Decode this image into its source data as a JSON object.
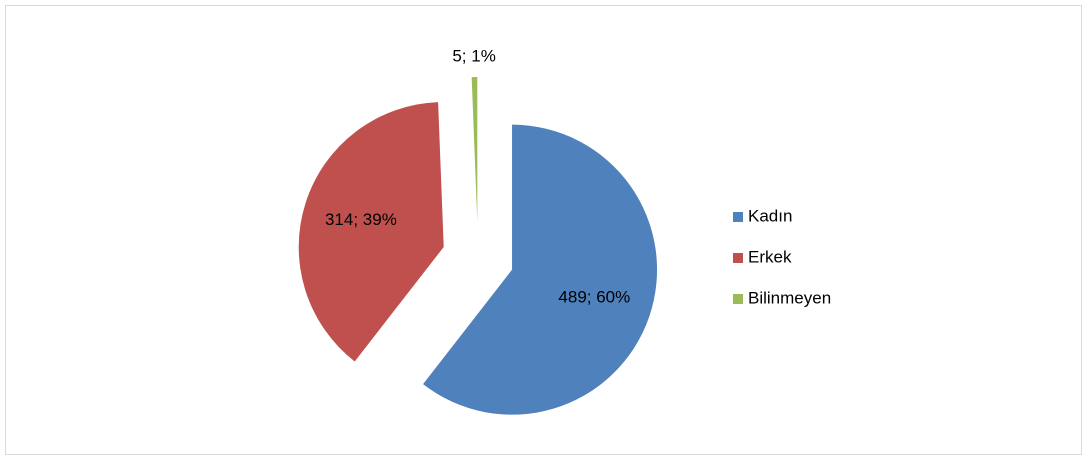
{
  "chart_data": {
    "type": "pie",
    "categories": [
      "Kadın",
      "Erkek",
      "Bilinmeyen"
    ],
    "values": [
      489,
      314,
      5
    ],
    "value_labels": [
      "489; 60%",
      "314; 39%",
      "5; 1%"
    ],
    "colors": [
      "#4f81bd",
      "#c0504d",
      "#9bbb59"
    ],
    "exploded": true,
    "legend": "right"
  }
}
